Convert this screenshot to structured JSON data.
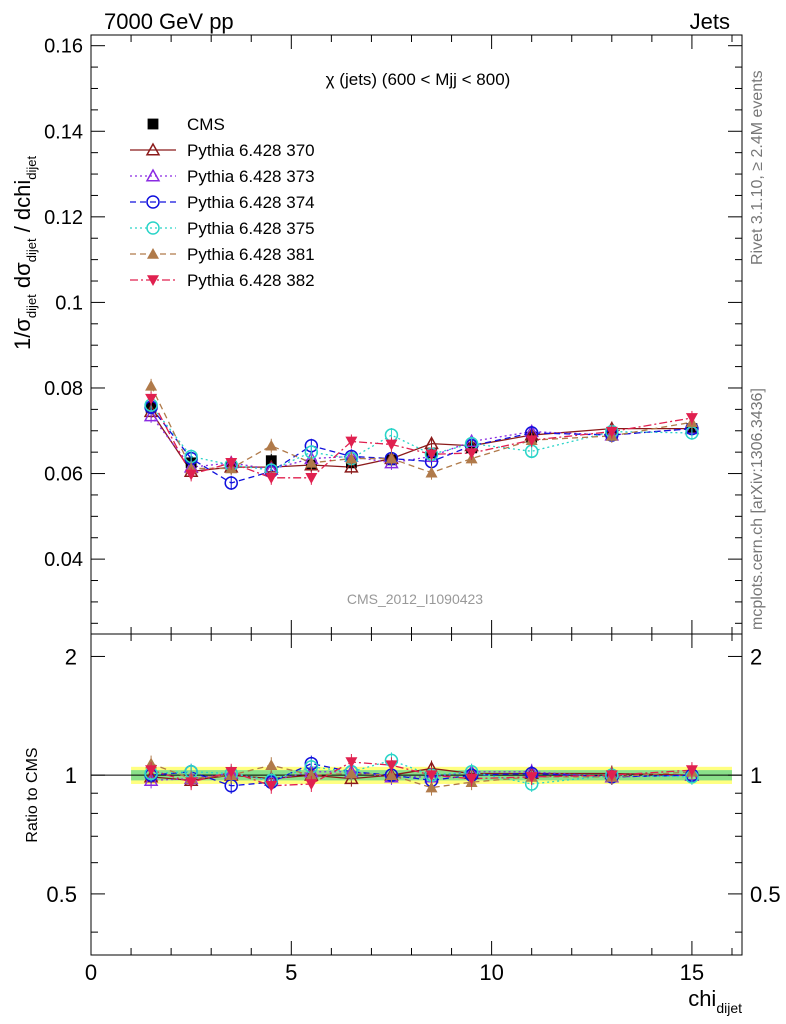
{
  "header": {
    "left": "7000 GeV pp",
    "right": "Jets"
  },
  "side_labels": {
    "rivet": "Rivet 3.1.10, ≥ 2.4M events",
    "mcplots": "mcplots.cern.ch [arXiv:1306.3436]"
  },
  "watermark": "CMS_2012_I1090423",
  "chart_data": [
    {
      "type": "scatter",
      "panel": "main",
      "title": "χ (jets) (600 < Mjj <  800)",
      "ylabel_parts": {
        "a": "1/σ",
        "a_sub": "dijet",
        "b": " dσ",
        "b_sub": "dijet",
        "c": " / dchi",
        "c_sub": "dijet"
      },
      "xlim": [
        0,
        16.25
      ],
      "ylim": [
        0.0225,
        0.1625
      ],
      "y_ticks": [
        0.04,
        0.06,
        0.08,
        0.1,
        0.12,
        0.14,
        0.16
      ],
      "y_tick_labels": [
        "0.04",
        "0.06",
        "0.08",
        "0.1",
        "0.12",
        "0.14",
        "0.16"
      ],
      "legend_position": "top-left",
      "x": [
        1.5,
        2.5,
        3.5,
        4.5,
        5.5,
        6.5,
        7.5,
        8.5,
        9.5,
        11,
        13,
        15
      ],
      "series": [
        {
          "name": "CMS",
          "color": "#000000",
          "marker": "filled-square",
          "line": "none",
          "values": [
            0.0755,
            0.0625,
            0.0615,
            0.063,
            0.062,
            0.0625,
            0.0632,
            0.0648,
            0.066,
            0.0685,
            0.0695,
            0.0705
          ]
        },
        {
          "name": "Pythia 6.428 370",
          "color": "#8b1a1a",
          "marker": "open-triangle",
          "line": "solid",
          "values": [
            0.0745,
            0.0605,
            0.0615,
            0.0615,
            0.062,
            0.0615,
            0.0635,
            0.067,
            0.0665,
            0.069,
            0.0705,
            0.0705
          ]
        },
        {
          "name": "Pythia 6.428 373",
          "color": "#8a2be2",
          "marker": "open-triangle",
          "line": "dotted",
          "values": [
            0.0735,
            0.0615,
            0.0625,
            0.061,
            0.0635,
            0.064,
            0.0625,
            0.064,
            0.0675,
            0.0698,
            0.069,
            0.0705
          ]
        },
        {
          "name": "Pythia 6.428 374",
          "color": "#1010dd",
          "marker": "open-circle",
          "line": "dashed",
          "values": [
            0.0755,
            0.0635,
            0.0578,
            0.0605,
            0.0665,
            0.064,
            0.0635,
            0.0628,
            0.0665,
            0.0695,
            0.069,
            0.0705
          ]
        },
        {
          "name": "Pythia 6.428 375",
          "color": "#2ad4c8",
          "marker": "open-circle",
          "line": "dotted",
          "values": [
            0.076,
            0.064,
            0.062,
            0.0608,
            0.065,
            0.0635,
            0.069,
            0.0645,
            0.067,
            0.0652,
            0.0698,
            0.0695
          ]
        },
        {
          "name": "Pythia 6.428 381",
          "color": "#b07a4a",
          "marker": "filled-triangle",
          "line": "dashed",
          "values": [
            0.0805,
            0.0612,
            0.0612,
            0.0665,
            0.0625,
            0.0635,
            0.0635,
            0.0602,
            0.0635,
            0.0678,
            0.0688,
            0.072
          ]
        },
        {
          "name": "Pythia 6.428 382",
          "color": "#e0204f",
          "marker": "filled-triangle-down",
          "line": "dashdot",
          "values": [
            0.0775,
            0.0598,
            0.0625,
            0.059,
            0.059,
            0.0675,
            0.0668,
            0.0645,
            0.0648,
            0.0678,
            0.0698,
            0.073
          ]
        }
      ]
    },
    {
      "type": "scatter",
      "panel": "ratio",
      "ylabel": "Ratio to CMS",
      "xlabel": "chi",
      "xlabel_sub": "dijet",
      "xlim": [
        0,
        16.25
      ],
      "ylim": [
        0.35,
        2.28
      ],
      "x_ticks": [
        0,
        5,
        10,
        15
      ],
      "x_tick_labels": [
        "0",
        "5",
        "10",
        "15"
      ],
      "y_ticks": [
        0.5,
        1,
        2
      ],
      "y_tick_labels": [
        "0.5",
        "1",
        "2"
      ],
      "band_outer": [
        0.95,
        1.05
      ],
      "band_inner": [
        0.97,
        1.03
      ],
      "band_colors": {
        "outer": "#ffff80",
        "inner": "#8ae08a"
      },
      "x": [
        1.5,
        2.5,
        3.5,
        4.5,
        5.5,
        6.5,
        7.5,
        8.5,
        9.5,
        11,
        13,
        15
      ],
      "series": [
        {
          "name": "Pythia 6.428 370",
          "color": "#8b1a1a",
          "marker": "open-triangle",
          "line": "solid",
          "values": [
            0.99,
            0.97,
            1.0,
            0.98,
            1.0,
            0.98,
            1.0,
            1.04,
            1.01,
            1.01,
            1.01,
            1.0
          ]
        },
        {
          "name": "Pythia 6.428 373",
          "color": "#8a2be2",
          "marker": "open-triangle",
          "line": "dotted",
          "values": [
            0.97,
            0.98,
            1.01,
            0.97,
            1.02,
            1.02,
            0.99,
            0.99,
            1.02,
            1.02,
            0.99,
            1.0
          ]
        },
        {
          "name": "Pythia 6.428 374",
          "color": "#1010dd",
          "marker": "open-circle",
          "line": "dashed",
          "values": [
            1.0,
            1.02,
            0.94,
            0.96,
            1.07,
            1.02,
            1.0,
            0.97,
            1.0,
            1.01,
            0.99,
            1.0
          ]
        },
        {
          "name": "Pythia 6.428 375",
          "color": "#2ad4c8",
          "marker": "open-circle",
          "line": "dotted",
          "values": [
            1.01,
            1.02,
            1.01,
            0.97,
            1.05,
            1.02,
            1.09,
            1.0,
            1.02,
            0.95,
            1.0,
            0.99
          ]
        },
        {
          "name": "Pythia 6.428 381",
          "color": "#b07a4a",
          "marker": "filled-triangle",
          "line": "dashed",
          "values": [
            1.07,
            0.98,
            1.0,
            1.06,
            1.0,
            1.01,
            1.0,
            0.93,
            0.96,
            0.99,
            0.99,
            1.02
          ]
        },
        {
          "name": "Pythia 6.428 382",
          "color": "#e0204f",
          "marker": "filled-triangle-down",
          "line": "dashdot",
          "values": [
            1.03,
            0.96,
            1.02,
            0.94,
            0.95,
            1.08,
            1.06,
            1.0,
            0.98,
            0.99,
            1.0,
            1.03
          ]
        }
      ]
    }
  ]
}
